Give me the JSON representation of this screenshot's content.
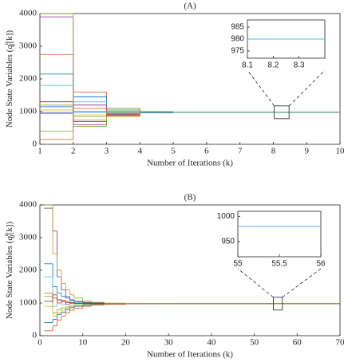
{
  "chart_data": [
    {
      "type": "step",
      "title": "(A)",
      "xlabel": "Number of Iterations (k)",
      "ylabel": {
        "text": "Node State Variables (",
        "var": "q",
        "sub": "j",
        "sup": "c",
        "rest": "[k])"
      },
      "x": [
        1,
        2,
        3,
        4,
        5,
        6,
        7,
        8,
        9,
        10
      ],
      "xlim": [
        1,
        10
      ],
      "xticks": [
        1,
        2,
        3,
        4,
        5,
        6,
        7,
        8,
        9,
        10
      ],
      "ylim": [
        0,
        4000
      ],
      "yticks": [
        0,
        1000,
        2000,
        3000,
        4000
      ],
      "series": [
        {
          "color": "#7e2f8e",
          "values": [
            3900,
            600,
            1100,
            990,
            980,
            980,
            980,
            980,
            980,
            980
          ]
        },
        {
          "color": "#d95319",
          "values": [
            2750,
            1600,
            900,
            1000,
            985,
            980,
            980,
            980,
            980,
            980
          ]
        },
        {
          "color": "#0072bd",
          "values": [
            2150,
            1450,
            1050,
            960,
            978,
            980,
            980,
            980,
            980,
            980
          ]
        },
        {
          "color": "#4dbeee",
          "values": [
            1800,
            1300,
            1000,
            1010,
            982,
            980,
            980,
            980,
            980,
            980
          ]
        },
        {
          "color": "#a2142f",
          "values": [
            1300,
            700,
            950,
            980,
            980,
            980,
            980,
            980,
            980,
            980
          ]
        },
        {
          "color": "#77ac30",
          "values": [
            1200,
            850,
            1100,
            970,
            980,
            980,
            980,
            980,
            980,
            980
          ]
        },
        {
          "color": "#0072bd",
          "values": [
            1150,
            1000,
            1000,
            990,
            980,
            980,
            980,
            980,
            980,
            980
          ]
        },
        {
          "color": "#edb120",
          "values": [
            1050,
            900,
            960,
            985,
            980,
            980,
            980,
            980,
            980,
            980
          ]
        },
        {
          "color": "#7e2f8e",
          "values": [
            950,
            1200,
            920,
            975,
            980,
            980,
            980,
            980,
            980,
            980
          ]
        },
        {
          "color": "#77ac30",
          "values": [
            400,
            550,
            1050,
            995,
            980,
            980,
            980,
            980,
            980,
            980
          ]
        },
        {
          "color": "#d95319",
          "values": [
            150,
            1100,
            880,
            990,
            980,
            980,
            980,
            980,
            980,
            980
          ]
        },
        {
          "color": "#a2a02a",
          "values": [
            4000,
            750,
            850,
            1000,
            980,
            980,
            980,
            980,
            980,
            980
          ]
        },
        {
          "color": "#4dbeee",
          "values": [
            980,
            980,
            980,
            980,
            980,
            980,
            980,
            980,
            980,
            980
          ]
        }
      ],
      "inset": {
        "x": [
          8.1,
          8.4
        ],
        "xlim": [
          8.1,
          8.4
        ],
        "xticks": [
          8.1,
          8.2,
          8.3
        ],
        "ylim": [
          972,
          988
        ],
        "yticks": [
          975,
          980,
          985
        ],
        "series": [
          {
            "color": "#4dbeee",
            "values": [
              980,
              980
            ]
          }
        ]
      }
    },
    {
      "type": "step",
      "title": "(B)",
      "xlabel": "Number of Iterations (k)",
      "ylabel": {
        "text": "Node State Variables (",
        "var": "q",
        "sub": "j",
        "sup": "c",
        "rest": "[k])"
      },
      "x": [
        1,
        2,
        3,
        4,
        5,
        6,
        7,
        8,
        10,
        12,
        15,
        20,
        25,
        30,
        70
      ],
      "xlim": [
        0,
        70
      ],
      "xticks": [
        0,
        10,
        20,
        30,
        40,
        50,
        60,
        70
      ],
      "ylim": [
        0,
        4000
      ],
      "yticks": [
        0,
        1000,
        2000,
        3000,
        4000
      ],
      "series": [
        {
          "color": "#7e2f8e",
          "values": [
            3900,
            3900,
            3200,
            1800,
            1400,
            1200,
            1100,
            1050,
            1020,
            1000,
            990,
            982,
            980,
            980,
            980
          ]
        },
        {
          "color": "#0072bd",
          "values": [
            2200,
            2200,
            1500,
            1300,
            1200,
            1150,
            1080,
            1040,
            1010,
            995,
            985,
            981,
            980,
            980,
            980
          ]
        },
        {
          "color": "#4dbeee",
          "values": [
            1800,
            1800,
            900,
            1100,
            950,
            1050,
            990,
            1010,
            985,
            978,
            980,
            980,
            980,
            980,
            980
          ]
        },
        {
          "color": "#d95319",
          "values": [
            1300,
            1300,
            1150,
            1000,
            1080,
            960,
            1020,
            990,
            1000,
            985,
            982,
            980,
            980,
            980,
            980
          ]
        },
        {
          "color": "#77ac30",
          "values": [
            1200,
            1200,
            700,
            800,
            850,
            880,
            920,
            950,
            960,
            970,
            975,
            979,
            980,
            980,
            980
          ]
        },
        {
          "color": "#a2142f",
          "values": [
            1050,
            1050,
            1250,
            1100,
            1050,
            1020,
            1000,
            990,
            985,
            982,
            981,
            980,
            980,
            980,
            980
          ]
        },
        {
          "color": "#edb120",
          "values": [
            900,
            900,
            600,
            700,
            780,
            840,
            880,
            910,
            940,
            960,
            972,
            978,
            980,
            980,
            980
          ]
        },
        {
          "color": "#0072bd",
          "values": [
            400,
            400,
            500,
            650,
            720,
            800,
            860,
            900,
            930,
            955,
            970,
            977,
            980,
            980,
            980
          ]
        },
        {
          "color": "#d95319",
          "values": [
            150,
            150,
            300,
            480,
            600,
            700,
            780,
            840,
            900,
            940,
            962,
            975,
            979,
            980,
            980
          ]
        },
        {
          "color": "#a2a02a",
          "values": [
            4000,
            4000,
            2500,
            2000,
            1600,
            1400,
            1250,
            1150,
            1060,
            1020,
            995,
            985,
            981,
            980,
            980
          ]
        }
      ],
      "inset": {
        "x": [
          55,
          56
        ],
        "xlim": [
          55,
          56
        ],
        "xticks": [
          55,
          55.5,
          56
        ],
        "ylim": [
          920,
          1010
        ],
        "yticks": [
          950,
          1000
        ],
        "series": [
          {
            "color": "#4dbeee",
            "values": [
              980,
              980
            ]
          }
        ]
      }
    }
  ]
}
